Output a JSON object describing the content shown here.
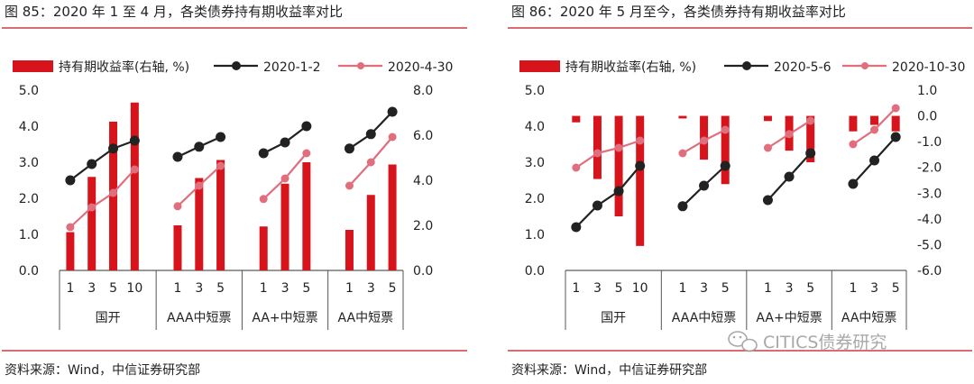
{
  "colors": {
    "bar": "#d7141b",
    "line1": "#222222",
    "line2": "#e16e7d",
    "rule": "#c0151b"
  },
  "watermark": {
    "icon": "wechat-icon",
    "text": "CITICS债券研究"
  },
  "charts": [
    {
      "title": "图 85：2020 年 1 至 4 月，各类债券持有期收益率对比",
      "source": "资料来源：Wind，中信证券研究部",
      "legend": {
        "bar": "持有期收益率(右轴, %)",
        "line1": "2020-1-2",
        "line2": "2020-4-30"
      }
    },
    {
      "title": "图 86：2020 年 5 月至今，各类债券持有期收益率对比",
      "source": "资料来源：Wind，中信证券研究部",
      "legend": {
        "bar": "持有期收益率(右轴, %)",
        "line1": "2020-5-6",
        "line2": "2020-10-30"
      }
    }
  ],
  "chart_data": [
    {
      "type": "bar+line",
      "groups": [
        {
          "label": "国开",
          "tenors": [
            "1",
            "3",
            "5",
            "10"
          ]
        },
        {
          "label": "AAA中短票",
          "tenors": [
            "1",
            "3",
            "5"
          ]
        },
        {
          "label": "AA+中短票",
          "tenors": [
            "1",
            "3",
            "5"
          ]
        },
        {
          "label": "AA中短票",
          "tenors": [
            "1",
            "3",
            "5"
          ]
        }
      ],
      "left_axis": {
        "min": 0,
        "max": 5,
        "ticks": [
          "0.0",
          "1.0",
          "2.0",
          "3.0",
          "4.0",
          "5.0"
        ]
      },
      "right_axis": {
        "min": 0,
        "max": 8,
        "ticks": [
          "0.0",
          "2.0",
          "4.0",
          "6.0",
          "8.0"
        ]
      },
      "series": [
        {
          "name": "持有期收益率(右轴, %)",
          "kind": "bar",
          "axis": "right",
          "values": [
            1.7,
            4.15,
            6.6,
            7.45,
            2.0,
            4.1,
            4.9,
            1.95,
            3.85,
            4.8,
            1.8,
            3.35,
            4.7
          ]
        },
        {
          "name": "2020-1-2",
          "kind": "line",
          "axis": "left",
          "values": [
            2.5,
            2.95,
            3.38,
            3.6,
            3.15,
            3.43,
            3.7,
            3.25,
            3.55,
            4.0,
            3.38,
            3.78,
            4.4
          ]
        },
        {
          "name": "2020-4-30",
          "kind": "line",
          "axis": "left",
          "values": [
            1.2,
            1.75,
            2.15,
            2.8,
            1.78,
            2.35,
            2.9,
            1.98,
            2.55,
            3.25,
            2.35,
            3.0,
            3.7
          ]
        }
      ]
    },
    {
      "type": "bar+line",
      "groups": [
        {
          "label": "国开",
          "tenors": [
            "1",
            "3",
            "5",
            "10"
          ]
        },
        {
          "label": "AAA中短票",
          "tenors": [
            "1",
            "3",
            "5"
          ]
        },
        {
          "label": "AA+中短票",
          "tenors": [
            "1",
            "3",
            "5"
          ]
        },
        {
          "label": "AA中短票",
          "tenors": [
            "1",
            "3",
            "5"
          ]
        }
      ],
      "left_axis": {
        "min": 0,
        "max": 5,
        "ticks": [
          "0.0",
          "1.0",
          "2.0",
          "3.0",
          "4.0",
          "5.0"
        ]
      },
      "right_axis": {
        "min": -6,
        "max": 1,
        "ticks": [
          "-6.0",
          "-5.0",
          "-4.0",
          "-3.0",
          "-2.0",
          "-1.0",
          "0.0",
          "1.0"
        ]
      },
      "series": [
        {
          "name": "持有期收益率(右轴, %)",
          "kind": "bar",
          "axis": "right",
          "values": [
            -0.25,
            -2.45,
            -3.9,
            -5.05,
            -0.1,
            -1.7,
            -2.65,
            -0.2,
            -1.35,
            -1.8,
            -0.6,
            -0.35,
            -0.6
          ]
        },
        {
          "name": "2020-5-6",
          "kind": "line",
          "axis": "left",
          "values": [
            1.2,
            1.8,
            2.2,
            2.9,
            1.78,
            2.35,
            2.9,
            1.95,
            2.6,
            3.25,
            2.4,
            3.05,
            3.7
          ]
        },
        {
          "name": "2020-10-30",
          "kind": "line",
          "axis": "left",
          "values": [
            2.85,
            3.25,
            3.4,
            3.6,
            3.25,
            3.6,
            3.9,
            3.4,
            3.78,
            4.15,
            3.5,
            3.9,
            4.5
          ]
        }
      ]
    }
  ]
}
